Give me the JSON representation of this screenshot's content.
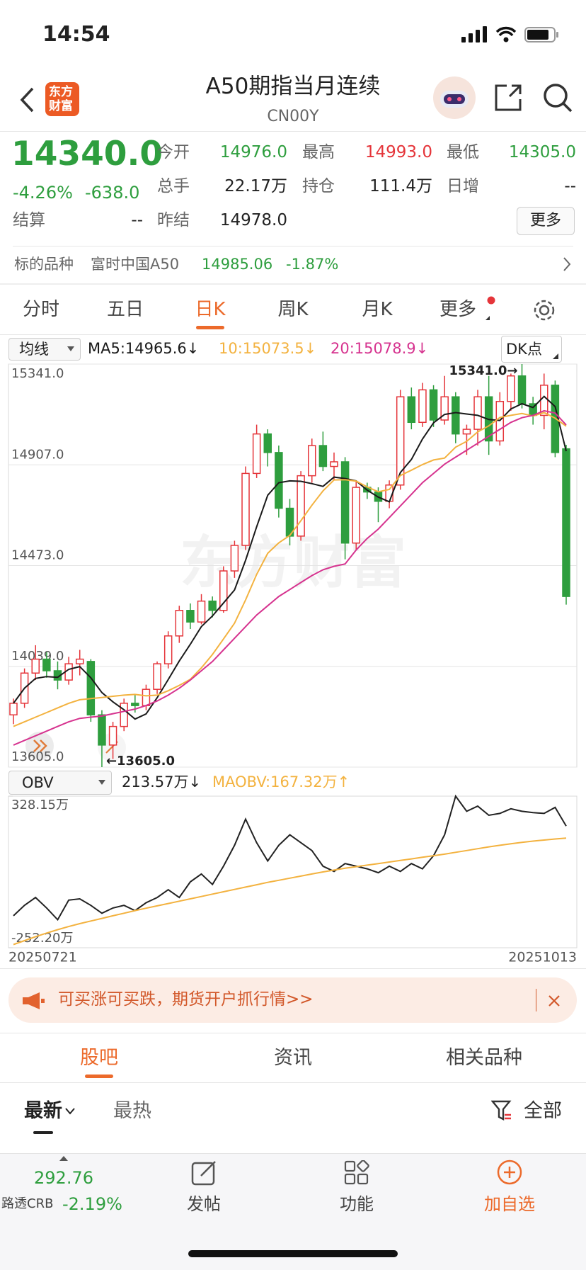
{
  "status_bar": {
    "time": "14:54"
  },
  "header": {
    "logo": [
      "东方",
      "财富"
    ],
    "title": "A50期指当月连续",
    "code": "CN00Y"
  },
  "quote": {
    "price": "14340.0",
    "change_percent": "-4.26%",
    "change": "-638.0",
    "fields": [
      {
        "label": "今开",
        "value": "14976.0"
      },
      {
        "label": "最高",
        "value": "14993.0"
      },
      {
        "label": "最低",
        "value": "14305.0"
      },
      {
        "label": "总手",
        "value": "22.17万"
      },
      {
        "label": "持仓",
        "value": "111.4万"
      },
      {
        "label": "日增",
        "value": "--"
      },
      {
        "label": "结算",
        "value": "--"
      },
      {
        "label": "昨结",
        "value": "14978.0"
      }
    ],
    "more_button": "更多"
  },
  "underlying": {
    "label": "标的品种",
    "name": "富时中国A50",
    "price": "14985.06",
    "change_percent": "-1.87%"
  },
  "period_tabs": {
    "items": [
      "分时",
      "五日",
      "日K",
      "周K",
      "月K",
      "更多"
    ],
    "active": 2
  },
  "watermark": "东方财富",
  "chart_data": [
    {
      "type": "candlestick",
      "overlay": "均线",
      "dk_button": "DK点",
      "ylim": [
        13605,
        15341
      ],
      "yticks": [
        {
          "value": 13605,
          "label": "13605.0"
        },
        {
          "value": 14039,
          "label": "14039.0"
        },
        {
          "value": 14473,
          "label": "14473.0"
        },
        {
          "value": 14907,
          "label": "14907.0"
        },
        {
          "value": 15341,
          "label": "15341.0"
        }
      ],
      "grid": true,
      "up_color": "#e5353a",
      "down_color": "#2e9e3e",
      "open": [
        13830,
        13880,
        14010,
        14070,
        14020,
        13980,
        14050,
        14060,
        13830,
        13700,
        13780,
        13880,
        13870,
        13940,
        14050,
        14170,
        14280,
        14230,
        14320,
        14280,
        14450,
        14560,
        14870,
        15040,
        14960,
        14720,
        14600,
        14860,
        14990,
        14900,
        14920,
        14570,
        14810,
        14790,
        14750,
        14820,
        15200,
        15090,
        15230,
        15100,
        15200,
        15040,
        15060,
        15200,
        15010,
        15180,
        15290,
        15170,
        15120,
        15250,
        14976
      ],
      "high": [
        13900,
        14030,
        14130,
        14100,
        14060,
        14080,
        14110,
        14070,
        13850,
        13800,
        13900,
        13920,
        13960,
        14060,
        14190,
        14300,
        14310,
        14350,
        14340,
        14470,
        14580,
        14900,
        15080,
        15060,
        14990,
        14760,
        14880,
        15020,
        15050,
        14960,
        14940,
        14840,
        14830,
        14810,
        14840,
        15230,
        15240,
        15260,
        15250,
        15290,
        15220,
        15080,
        15230,
        15290,
        15220,
        15300,
        15341,
        15200,
        15300,
        15270,
        14993
      ],
      "low": [
        13790,
        13860,
        13980,
        13990,
        13940,
        13960,
        14000,
        13800,
        13605,
        13640,
        13760,
        13840,
        13850,
        13920,
        14030,
        14140,
        14200,
        14220,
        14250,
        14270,
        14420,
        14540,
        14850,
        14900,
        14680,
        14560,
        14580,
        14830,
        14880,
        14840,
        14500,
        14540,
        14760,
        14660,
        14720,
        14800,
        15060,
        15070,
        15070,
        15080,
        15000,
        14950,
        14990,
        14950,
        14990,
        15140,
        15150,
        15080,
        15060,
        14940,
        14305
      ],
      "close": [
        13880,
        14010,
        14070,
        14020,
        13980,
        14050,
        14070,
        13830,
        13700,
        13780,
        13880,
        13870,
        13940,
        14050,
        14170,
        14280,
        14230,
        14320,
        14280,
        14450,
        14560,
        14870,
        15040,
        14960,
        14720,
        14600,
        14860,
        14990,
        14900,
        14920,
        14570,
        14810,
        14790,
        14750,
        14820,
        15200,
        15090,
        15230,
        15100,
        15200,
        15040,
        15060,
        15200,
        15010,
        15180,
        15290,
        15170,
        15120,
        15250,
        14960,
        14340
      ],
      "series": [
        {
          "name": "MA5:14965.6↓",
          "color": "#1a1a1a",
          "values": [
            13880,
            13945,
            13987,
            13995,
            13992,
            14026,
            14038,
            13990,
            13926,
            13886,
            13852,
            13812,
            13834,
            13904,
            13982,
            14062,
            14134,
            14210,
            14256,
            14312,
            14368,
            14496,
            14640,
            14776,
            14830,
            14838,
            14836,
            14826,
            14814,
            14854,
            14848,
            14838,
            14798,
            14768,
            14748,
            14874,
            14930,
            15018,
            15088,
            15124,
            15132,
            15126,
            15120,
            15102,
            15098,
            15148,
            15170,
            15154,
            15202,
            15158,
            14965.6
          ]
        },
        {
          "name": "10:15073.5↓",
          "color": "#f3b23f",
          "values": [
            13780,
            13800,
            13820,
            13840,
            13860,
            13880,
            13895,
            13900,
            13905,
            13910,
            13915,
            13918,
            13912,
            13915,
            13934,
            13957,
            13983,
            14032,
            14090,
            14157,
            14225,
            14325,
            14435,
            14526,
            14571,
            14603,
            14666,
            14733,
            14795,
            14842,
            14843,
            14837,
            14812,
            14791,
            14801,
            14861,
            14884,
            14908,
            14928,
            14936,
            14983,
            15008,
            15049,
            15075,
            15111,
            15120,
            15128,
            15117,
            15132,
            15108,
            15073.5
          ]
        },
        {
          "name": "20:15078.9↓",
          "color": "#d6338f",
          "values": [
            13700,
            13720,
            13740,
            13760,
            13780,
            13800,
            13815,
            13820,
            13825,
            13835,
            13845,
            13855,
            13870,
            13890,
            13915,
            13945,
            13980,
            14020,
            14060,
            14110,
            14160,
            14210,
            14260,
            14300,
            14340,
            14370,
            14400,
            14430,
            14455,
            14470,
            14480,
            14540,
            14590,
            14630,
            14680,
            14730,
            14780,
            14830,
            14870,
            14910,
            14940,
            14970,
            15000,
            15030,
            15060,
            15090,
            15110,
            15120,
            15140,
            15130,
            15078.9
          ]
        }
      ],
      "annotations": [
        "15341.0→",
        "←13605.0"
      ]
    },
    {
      "type": "line",
      "indicator": "OBV",
      "categories": [
        "20250721",
        null,
        null,
        null,
        null,
        null,
        null,
        null,
        null,
        null,
        null,
        null,
        null,
        null,
        null,
        null,
        null,
        null,
        null,
        null,
        null,
        null,
        null,
        null,
        null,
        null,
        null,
        null,
        null,
        null,
        null,
        null,
        null,
        null,
        null,
        null,
        null,
        null,
        null,
        null,
        null,
        null,
        null,
        null,
        null,
        null,
        null,
        null,
        null,
        null,
        "20251013"
      ],
      "ylim": [
        -252.2,
        328.15
      ],
      "yticks": [
        {
          "value": -252.2,
          "label": "-252.20万"
        },
        {
          "value": 328.15,
          "label": "328.15万"
        }
      ],
      "series": [
        {
          "name": "213.57万↓",
          "color": "#222222",
          "values": [
            -130,
            -90,
            -60,
            -100,
            -145,
            -70,
            -65,
            -90,
            -120,
            -100,
            -90,
            -110,
            -80,
            -60,
            -30,
            -60,
            0,
            30,
            -10,
            60,
            140,
            240,
            150,
            80,
            140,
            180,
            150,
            120,
            60,
            40,
            70,
            60,
            50,
            35,
            60,
            40,
            70,
            50,
            100,
            180,
            328.15,
            270,
            290,
            255,
            262,
            280,
            270,
            265,
            262,
            285,
            213.57
          ]
        },
        {
          "name": "MAOBV:167.32万↑",
          "color": "#f3b23f",
          "values": [
            -240,
            -225,
            -210,
            -196,
            -183,
            -171,
            -160,
            -150,
            -140,
            -130,
            -120,
            -110,
            -101,
            -92,
            -83,
            -74,
            -65,
            -56,
            -47,
            -38,
            -29,
            -20,
            -11,
            -2,
            6,
            14,
            22,
            30,
            38,
            45,
            52,
            58,
            64,
            70,
            76,
            82,
            88,
            94,
            100,
            106,
            113,
            120,
            127,
            134,
            140,
            146,
            151,
            156,
            160,
            164,
            167.32
          ]
        }
      ]
    }
  ],
  "promo_banner": "可买涨可买跌，期货开户抓行情>>",
  "content_tabs": {
    "items": [
      "股吧",
      "资讯",
      "相关品种"
    ],
    "active": 0
  },
  "feed_filter": {
    "sorts": [
      "最新",
      "最热"
    ],
    "active": 0,
    "filter": "全部"
  },
  "bottom_bar": {
    "index_value": "292.76",
    "index_name": "路透CRB",
    "index_change": "-2.19%",
    "actions": [
      "发帖",
      "功能",
      "加自选"
    ]
  }
}
